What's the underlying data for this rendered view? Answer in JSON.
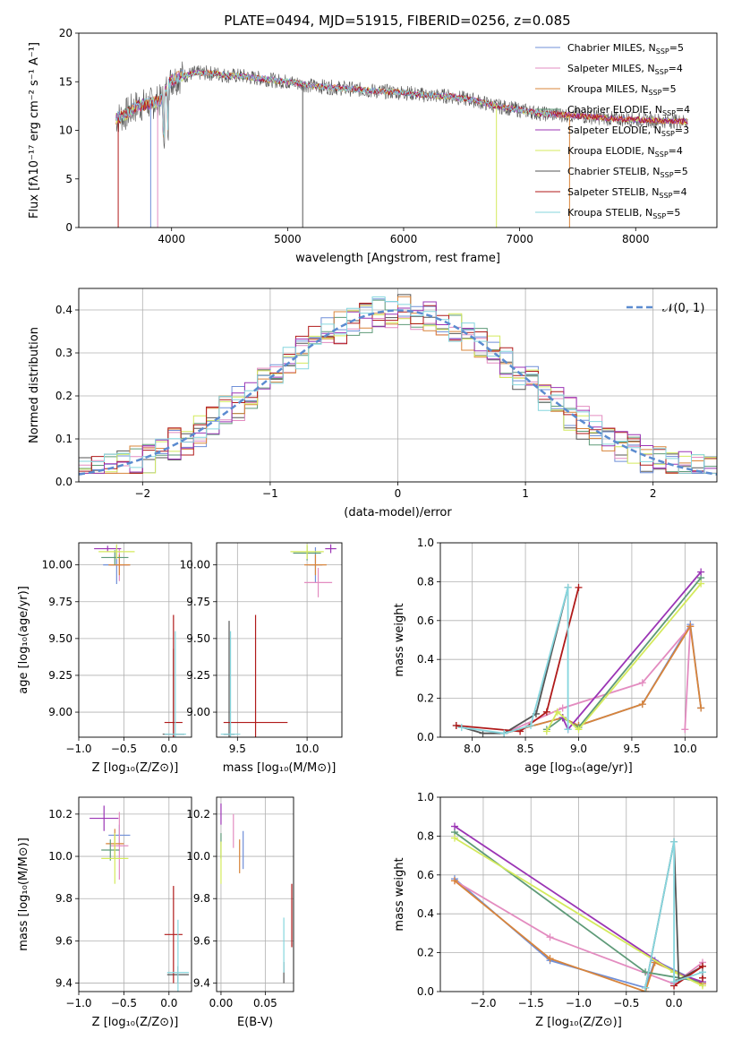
{
  "figure": {
    "title": "PLATE=0494, MJD=51915, FIBERID=0256, z=0.085",
    "models": [
      {
        "name": "Chabrier MILES, N",
        "nssp": "5",
        "color": "#6f8fd8"
      },
      {
        "name": "Salpeter MILES, N",
        "nssp": "4",
        "color": "#e38cc0"
      },
      {
        "name": "Kroupa MILES, N",
        "nssp": "5",
        "color": "#d8843a"
      },
      {
        "name": "Chabrier ELODIE, N",
        "nssp": "4",
        "color": "#5e9a78"
      },
      {
        "name": "Salpeter ELODIE, N",
        "nssp": "3",
        "color": "#9b35b5"
      },
      {
        "name": "Kroupa ELODIE, N",
        "nssp": "4",
        "color": "#d4ea5c"
      },
      {
        "name": "Chabrier STELIB, N",
        "nssp": "5",
        "color": "#555555"
      },
      {
        "name": "Salpeter STELIB, N",
        "nssp": "4",
        "color": "#b01a1a"
      },
      {
        "name": "Kroupa STELIB, N",
        "nssp": "5",
        "color": "#86d6de"
      }
    ],
    "legend_sub": "SSP"
  },
  "chart_data": [
    {
      "id": "spectrum",
      "type": "line",
      "xlabel": "wavelength [Angstrom, rest frame]",
      "ylabel": "Flux [fλ10⁻¹⁷ erg cm⁻² s⁻¹ A⁻¹]",
      "xlim": [
        3200,
        8700
      ],
      "ylim": [
        0,
        20
      ],
      "xticks": [
        "4000",
        "5000",
        "6000",
        "7000",
        "8000"
      ],
      "yticks": [
        "0",
        "5",
        "10",
        "15",
        "20"
      ],
      "grid": false,
      "legend": "right",
      "continuum_x": [
        3520,
        3600,
        3700,
        3800,
        3900,
        4000,
        4100,
        4200,
        4300,
        4400,
        4500,
        4600,
        4700,
        4800,
        4900,
        5000,
        5200,
        5400,
        5600,
        5800,
        6000,
        6200,
        6400,
        6600,
        6800,
        7000,
        7200,
        7400,
        7600,
        7800,
        8000,
        8200,
        8450
      ],
      "continuum_y": [
        11.2,
        11.6,
        12.5,
        12.7,
        13.0,
        15.2,
        15.6,
        15.9,
        15.9,
        15.8,
        15.6,
        15.6,
        15.4,
        15.3,
        15.1,
        15.0,
        14.6,
        14.4,
        14.2,
        14.0,
        13.9,
        13.6,
        13.5,
        13.1,
        12.5,
        12.1,
        11.7,
        11.6,
        11.4,
        11.2,
        11.1,
        11.0,
        10.9
      ]
    },
    {
      "id": "residuals",
      "type": "line",
      "xlabel": "(data-model)/error",
      "ylabel": "Normed distribution",
      "xlim": [
        -2.5,
        2.5
      ],
      "ylim": [
        0,
        0.45
      ],
      "xticks": [
        "−2",
        "−1",
        "0",
        "1",
        "2"
      ],
      "yticks": [
        "0.0",
        "0.1",
        "0.2",
        "0.3",
        "0.4"
      ],
      "grid": true,
      "legend_label": "𝒩(0, 1)",
      "reference": "normal(0,1)"
    },
    {
      "id": "age_vs_z",
      "type": "errorbar",
      "xlabel": "Z [log₁₀(Z/Z⊙)]",
      "ylabel": "age  [log₁₀(age/yr)]",
      "xlim": [
        -1.0,
        0.25
      ],
      "ylim": [
        8.83,
        10.15
      ],
      "xticks": [
        "−1.0",
        "−0.5",
        "0.0"
      ],
      "yticks": [
        "9.00",
        "9.25",
        "9.50",
        "9.75",
        "10.00"
      ],
      "grid": true,
      "points": [
        {
          "m": 0,
          "x": -0.58,
          "y": 10.0,
          "xe": 0.15,
          "ye": 0.13
        },
        {
          "m": 1,
          "x": -0.55,
          "y": 10.0,
          "xe": 0.1,
          "ye": 0.11
        },
        {
          "m": 2,
          "x": -0.55,
          "y": 10.0,
          "xe": 0.12,
          "ye": 0.07
        },
        {
          "m": 3,
          "x": -0.6,
          "y": 10.05,
          "xe": 0.15,
          "ye": 0.05
        },
        {
          "m": 4,
          "x": -0.68,
          "y": 10.11,
          "xe": 0.15,
          "ye": 0.02
        },
        {
          "m": 5,
          "x": -0.58,
          "y": 10.09,
          "xe": 0.2,
          "ye": 0.05
        },
        {
          "m": 6,
          "x": 0.05,
          "y": 8.85,
          "xe": 0.12,
          "ye": 0.58
        },
        {
          "m": 7,
          "x": 0.05,
          "y": 8.93,
          "xe": 0.1,
          "ye": 0.73
        },
        {
          "m": 8,
          "x": 0.07,
          "y": 8.85,
          "xe": 0.12,
          "ye": 0.7
        }
      ]
    },
    {
      "id": "age_vs_mass",
      "type": "errorbar",
      "xlabel": "mass [log₁₀(M/M⊙)]",
      "ylabel": "",
      "xlim": [
        9.35,
        10.25
      ],
      "ylim": [
        8.83,
        10.15
      ],
      "xticks": [
        "9.5",
        "10.0"
      ],
      "yticks": [
        "9.00",
        "9.25",
        "9.50",
        "9.75",
        "10.00"
      ],
      "grid": true,
      "points": [
        {
          "m": 0,
          "x": 10.06,
          "y": 10.0,
          "xe": 0.05,
          "ye": 0.12
        },
        {
          "m": 1,
          "x": 10.08,
          "y": 9.88,
          "xe": 0.1,
          "ye": 0.1
        },
        {
          "m": 2,
          "x": 10.06,
          "y": 10.0,
          "xe": 0.08,
          "ye": 0.07
        },
        {
          "m": 3,
          "x": 10.0,
          "y": 10.08,
          "xe": 0.1,
          "ye": 0.05
        },
        {
          "m": 4,
          "x": 10.17,
          "y": 10.11,
          "xe": 0.04,
          "ye": 0.03
        },
        {
          "m": 5,
          "x": 10.0,
          "y": 10.09,
          "xe": 0.12,
          "ye": 0.05
        },
        {
          "m": 6,
          "x": 9.44,
          "y": 8.85,
          "xe": 0.04,
          "ye": 0.77
        },
        {
          "m": 7,
          "x": 9.63,
          "y": 8.93,
          "xe": 0.23,
          "ye": 0.73
        },
        {
          "m": 8,
          "x": 9.45,
          "y": 8.85,
          "xe": 0.07,
          "ye": 0.7
        }
      ]
    },
    {
      "id": "weight_vs_age",
      "type": "line",
      "xlabel": "age  [log₁₀(age/yr)]",
      "ylabel": "mass weight",
      "xlim": [
        7.7,
        10.3
      ],
      "ylim": [
        0,
        1.0
      ],
      "xticks": [
        "8.0",
        "8.5",
        "9.0",
        "9.5",
        "10.0"
      ],
      "yticks": [
        "0.0",
        "0.2",
        "0.4",
        "0.6",
        "0.8",
        "1.0"
      ],
      "grid": true,
      "series": [
        {
          "m": 0,
          "x": [
            8.3,
            8.85,
            9.0,
            9.6,
            10.05,
            10.15
          ],
          "y": [
            0.02,
            0.1,
            0.06,
            0.17,
            0.58,
            0.15
          ]
        },
        {
          "m": 1,
          "x": [
            8.3,
            8.85,
            9.6,
            10.05,
            10.0
          ],
          "y": [
            0.02,
            0.15,
            0.28,
            0.57,
            0.04
          ]
        },
        {
          "m": 2,
          "x": [
            8.3,
            8.85,
            9.0,
            9.6,
            10.05,
            10.15
          ],
          "y": [
            0.02,
            0.1,
            0.06,
            0.17,
            0.57,
            0.15
          ]
        },
        {
          "m": 3,
          "x": [
            8.7,
            8.85,
            9.0,
            10.15
          ],
          "y": [
            0.04,
            0.1,
            0.05,
            0.82
          ]
        },
        {
          "m": 4,
          "x": [
            8.85,
            8.9,
            10.15
          ],
          "y": [
            0.1,
            0.04,
            0.85
          ]
        },
        {
          "m": 5,
          "x": [
            8.7,
            8.8,
            9.0,
            10.15
          ],
          "y": [
            0.03,
            0.13,
            0.04,
            0.79
          ]
        },
        {
          "m": 6,
          "x": [
            7.85,
            8.1,
            8.3,
            8.6,
            8.9
          ],
          "y": [
            0.06,
            0.02,
            0.02,
            0.12,
            0.77
          ]
        },
        {
          "m": 7,
          "x": [
            7.85,
            8.45,
            8.7,
            9.0
          ],
          "y": [
            0.06,
            0.03,
            0.13,
            0.77
          ]
        },
        {
          "m": 8,
          "x": [
            7.9,
            8.3,
            8.55,
            8.9,
            8.9
          ],
          "y": [
            0.05,
            0.02,
            0.06,
            0.77,
            0.04
          ]
        }
      ]
    },
    {
      "id": "mass_vs_z",
      "type": "errorbar",
      "xlabel": "Z [log₁₀(Z/Z⊙)]",
      "ylabel": "mass [log₁₀(M/M⊙)]",
      "xlim": [
        -1.0,
        0.25
      ],
      "ylim": [
        9.36,
        10.28
      ],
      "xticks": [
        "−1.0",
        "−0.5",
        "0.0"
      ],
      "yticks": [
        "9.4",
        "9.6",
        "9.8",
        "10.0",
        "10.2"
      ],
      "grid": true,
      "points": [
        {
          "m": 0,
          "x": -0.55,
          "y": 10.1,
          "xe": 0.12,
          "ye": 0.05
        },
        {
          "m": 1,
          "x": -0.55,
          "y": 10.05,
          "xe": 0.1,
          "ye": 0.16
        },
        {
          "m": 2,
          "x": -0.6,
          "y": 10.06,
          "xe": 0.1,
          "ye": 0.07
        },
        {
          "m": 3,
          "x": -0.65,
          "y": 10.03,
          "xe": 0.1,
          "ye": 0.05
        },
        {
          "m": 4,
          "x": -0.72,
          "y": 10.18,
          "xe": 0.16,
          "ye": 0.06
        },
        {
          "m": 5,
          "x": -0.6,
          "y": 9.99,
          "xe": 0.15,
          "ye": 0.12
        },
        {
          "m": 6,
          "x": 0.1,
          "y": 9.44,
          "xe": 0.12,
          "ye": 0.04
        },
        {
          "m": 7,
          "x": 0.05,
          "y": 9.63,
          "xe": 0.1,
          "ye": 0.23
        },
        {
          "m": 8,
          "x": 0.1,
          "y": 9.45,
          "xe": 0.12,
          "ye": 0.25
        }
      ]
    },
    {
      "id": "mass_vs_ebv",
      "type": "errorbar",
      "xlabel": "E(B-V)",
      "ylabel": "",
      "xlim": [
        -0.005,
        0.082
      ],
      "ylim": [
        9.36,
        10.28
      ],
      "xticks": [
        "0.00",
        "0.05"
      ],
      "yticks": [
        "9.4",
        "9.6",
        "9.8",
        "10.0",
        "10.2"
      ],
      "grid": true,
      "points": [
        {
          "m": 0,
          "x": 0.025,
          "y": 10.03,
          "xe": 0,
          "ye": 0.09
        },
        {
          "m": 1,
          "x": 0.014,
          "y": 10.12,
          "xe": 0,
          "ye": 0.08
        },
        {
          "m": 2,
          "x": 0.021,
          "y": 10.0,
          "xe": 0,
          "ye": 0.08
        },
        {
          "m": 3,
          "x": 0.0,
          "y": 10.05,
          "xe": 0,
          "ye": 0.06
        },
        {
          "m": 4,
          "x": 0.0,
          "y": 10.2,
          "xe": 0,
          "ye": 0.05
        },
        {
          "m": 5,
          "x": 0.0,
          "y": 9.97,
          "xe": 0,
          "ye": 0.1
        },
        {
          "m": 6,
          "x": 0.071,
          "y": 9.45,
          "xe": 0,
          "ye": 0.05
        },
        {
          "m": 7,
          "x": 0.08,
          "y": 9.72,
          "xe": 0,
          "ye": 0.15
        },
        {
          "m": 8,
          "x": 0.071,
          "y": 9.58,
          "xe": 0,
          "ye": 0.13
        }
      ]
    },
    {
      "id": "weight_vs_z",
      "type": "line",
      "xlabel": "Z [log₁₀(Z/Z⊙)]",
      "ylabel": "mass weight",
      "xlim": [
        -2.45,
        0.45
      ],
      "ylim": [
        0,
        1.0
      ],
      "xticks": [
        "−2.0",
        "−1.5",
        "−1.0",
        "−0.5",
        "0.0"
      ],
      "yticks": [
        "0.0",
        "0.2",
        "0.4",
        "0.6",
        "0.8",
        "1.0"
      ],
      "grid": true,
      "series": [
        {
          "m": 0,
          "x": [
            -2.3,
            -1.3,
            -0.3,
            -0.2,
            0.3
          ],
          "y": [
            0.58,
            0.16,
            0.02,
            0.16,
            0.04
          ]
        },
        {
          "m": 1,
          "x": [
            -2.3,
            -1.3,
            0.0,
            0.3
          ],
          "y": [
            0.57,
            0.28,
            0.04,
            0.15
          ]
        },
        {
          "m": 2,
          "x": [
            -2.3,
            -1.3,
            -0.3,
            -0.2,
            0.3
          ],
          "y": [
            0.57,
            0.17,
            0.0,
            0.15,
            0.04
          ]
        },
        {
          "m": 3,
          "x": [
            -2.3,
            -0.3,
            0.3
          ],
          "y": [
            0.82,
            0.1,
            0.05
          ]
        },
        {
          "m": 4,
          "x": [
            -2.3,
            0.0,
            0.3
          ],
          "y": [
            0.85,
            0.1,
            0.05
          ]
        },
        {
          "m": 5,
          "x": [
            -2.3,
            0.0,
            0.3
          ],
          "y": [
            0.79,
            0.1,
            0.03
          ]
        },
        {
          "m": 6,
          "x": [
            -0.3,
            0.0,
            0.05,
            0.3
          ],
          "y": [
            0.02,
            0.77,
            0.06,
            0.13
          ]
        },
        {
          "m": 7,
          "x": [
            0.0,
            0.3,
            0.3
          ],
          "y": [
            0.03,
            0.13,
            0.07
          ]
        },
        {
          "m": 8,
          "x": [
            -0.3,
            0.0,
            0.0,
            0.3
          ],
          "y": [
            0.02,
            0.77,
            0.05,
            0.1
          ]
        }
      ]
    }
  ]
}
